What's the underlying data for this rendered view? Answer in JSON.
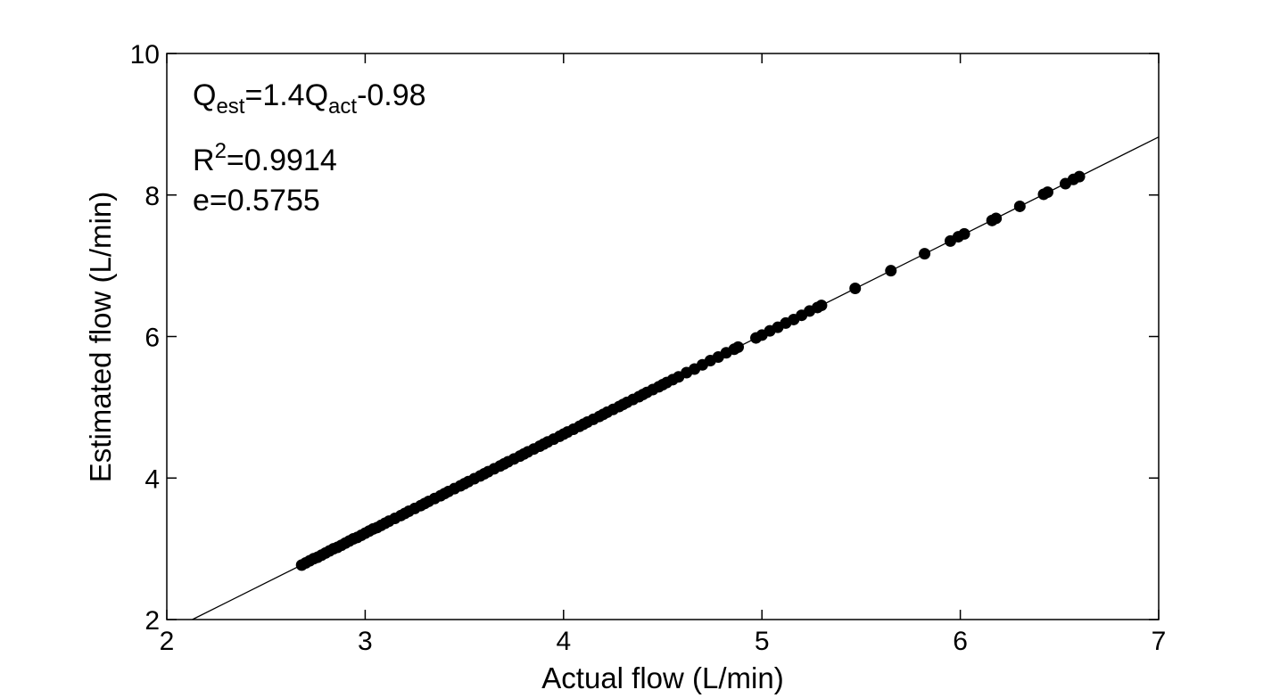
{
  "chart_data": {
    "type": "scatter",
    "title": "",
    "xlabel": "Actual flow (L/min)",
    "ylabel": "Estimated flow (L/min)",
    "xlim": [
      2,
      7
    ],
    "ylim": [
      2,
      10
    ],
    "xticks": [
      "2",
      "3",
      "4",
      "5",
      "6",
      "7"
    ],
    "yticks": [
      "2",
      "4",
      "6",
      "8",
      "10"
    ],
    "grid": false,
    "legend": "none",
    "marker_color": "#000000",
    "annotations": {
      "line1": {
        "base1": "Q",
        "sub1": "est",
        "mid": "=1.4Q",
        "sub2": "act",
        "tail": "-0.98"
      },
      "line2": {
        "base": "R",
        "sup": "2",
        "tail": "=0.9914"
      },
      "line3": "e=0.5755"
    },
    "fit_line": {
      "slope": 1.4,
      "intercept": -0.98
    },
    "series": [
      {
        "x": [
          2.68,
          2.7,
          2.72,
          2.74,
          2.76,
          2.78,
          2.8,
          2.82,
          2.84,
          2.86,
          2.88,
          2.9,
          2.92,
          2.94,
          2.96,
          2.98,
          3.0,
          3.02,
          3.04,
          3.06,
          3.08,
          3.1,
          3.12,
          3.15,
          3.18,
          3.2,
          3.22,
          3.25,
          3.28,
          3.3,
          3.32,
          3.35,
          3.38,
          3.4,
          3.42,
          3.45,
          3.48,
          3.5,
          3.52,
          3.55,
          3.58,
          3.6,
          3.62,
          3.65,
          3.68,
          3.7,
          3.72,
          3.75,
          3.78,
          3.8,
          3.82,
          3.85,
          3.88,
          3.9,
          3.92,
          3.95,
          3.98,
          4.0,
          4.02,
          4.05,
          4.08,
          4.1,
          4.12,
          4.15,
          4.18,
          4.2,
          4.22,
          4.25,
          4.28,
          4.3,
          4.32,
          4.35,
          4.38,
          4.4,
          4.42,
          4.45,
          4.48,
          4.5,
          4.52,
          4.55,
          4.58,
          4.62,
          4.66,
          4.7,
          4.74,
          4.78,
          4.82,
          4.86,
          4.88,
          4.97,
          5.0,
          5.04,
          5.08,
          5.12,
          5.16,
          5.2,
          5.24,
          5.28,
          5.3,
          5.47,
          5.65,
          5.82,
          5.95,
          5.99,
          6.02,
          6.16,
          6.18,
          6.3,
          6.42,
          6.44,
          6.53,
          6.57,
          6.6
        ],
        "y": [
          2.77,
          2.8,
          2.83,
          2.86,
          2.88,
          2.91,
          2.94,
          2.97,
          3.0,
          3.02,
          3.05,
          3.08,
          3.11,
          3.14,
          3.16,
          3.19,
          3.22,
          3.25,
          3.28,
          3.3,
          3.33,
          3.36,
          3.39,
          3.43,
          3.47,
          3.5,
          3.53,
          3.57,
          3.61,
          3.64,
          3.67,
          3.71,
          3.75,
          3.78,
          3.81,
          3.85,
          3.89,
          3.92,
          3.95,
          3.99,
          4.03,
          4.06,
          4.09,
          4.13,
          4.17,
          4.2,
          4.23,
          4.27,
          4.31,
          4.34,
          4.37,
          4.41,
          4.45,
          4.48,
          4.51,
          4.55,
          4.59,
          4.62,
          4.65,
          4.69,
          4.73,
          4.76,
          4.79,
          4.83,
          4.87,
          4.9,
          4.93,
          4.97,
          5.01,
          5.04,
          5.07,
          5.11,
          5.15,
          5.18,
          5.21,
          5.25,
          5.29,
          5.32,
          5.35,
          5.39,
          5.43,
          5.49,
          5.54,
          5.6,
          5.66,
          5.71,
          5.77,
          5.82,
          5.85,
          5.98,
          6.02,
          6.08,
          6.13,
          6.19,
          6.24,
          6.3,
          6.36,
          6.41,
          6.44,
          6.68,
          6.93,
          7.17,
          7.35,
          7.41,
          7.45,
          7.64,
          7.67,
          7.84,
          8.01,
          8.04,
          8.16,
          8.22,
          8.26
        ]
      }
    ]
  }
}
